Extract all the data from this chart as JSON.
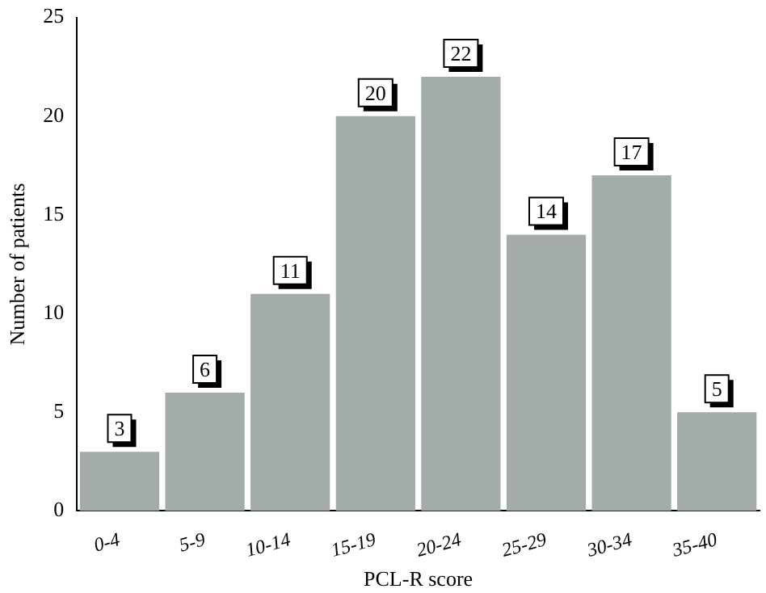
{
  "chart_data": {
    "type": "bar",
    "xlabel": "PCL-R score",
    "ylabel": "Number of patients",
    "categories": [
      "0-4",
      "5-9",
      "10-14",
      "15-19",
      "20-24",
      "25-29",
      "30-34",
      "35-40"
    ],
    "values": [
      3,
      6,
      11,
      20,
      22,
      14,
      17,
      5
    ],
    "color": "#a3aca9",
    "ylim": [
      0,
      25
    ],
    "yticks": [
      0,
      5,
      10,
      15,
      20,
      25
    ],
    "grid": false,
    "legend": false,
    "data_labels": true
  }
}
